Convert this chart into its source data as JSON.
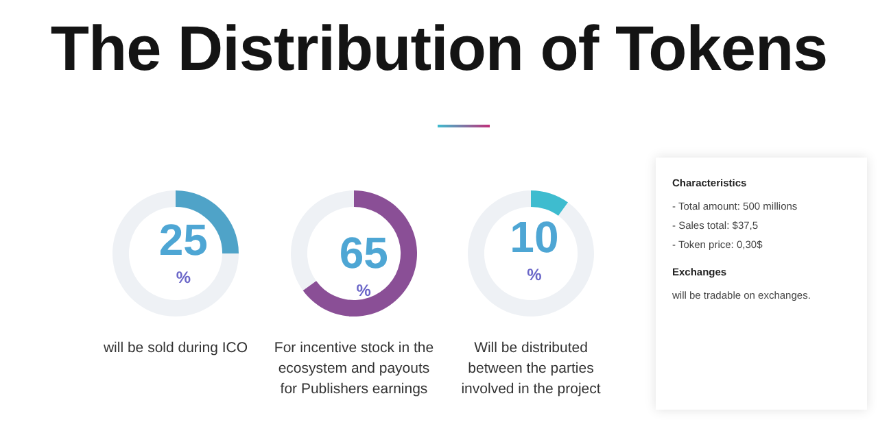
{
  "chart_data": [
    {
      "type": "donut",
      "title": "The Distribution of Tokens",
      "categories": [
        null,
        null
      ],
      "values": [
        25,
        75
      ],
      "colors": [
        "#4fa3c8",
        "#eef1f5"
      ],
      "value_labels": [
        "25 %",
        null
      ],
      "annotations": [
        "will be sold during ICO"
      ]
    },
    {
      "type": "donut",
      "categories": [
        null,
        null
      ],
      "values": [
        65,
        35
      ],
      "colors": [
        "#8a4f96",
        "#eef1f5"
      ],
      "value_labels": [
        "65 %",
        null
      ],
      "annotations": [
        "For incentive stock in the ecosystem and payouts for Publishers earnings"
      ]
    },
    {
      "type": "donut",
      "categories": [
        null,
        null
      ],
      "values": [
        10,
        90
      ],
      "colors": [
        "#3ebccf",
        "#eef1f5"
      ],
      "value_labels": [
        "10 %",
        null
      ],
      "annotations": [
        "Will be distributed between the parties involved in the project"
      ]
    },
    {
      "type": "other",
      "title": "Characteristics",
      "annotations": [
        "- Total amount: 500 millions",
        "- Sales total: $37,5",
        "- Token price: 0,30$",
        "Exchanges",
        "will be tradable on exchanges."
      ]
    }
  ]
}
